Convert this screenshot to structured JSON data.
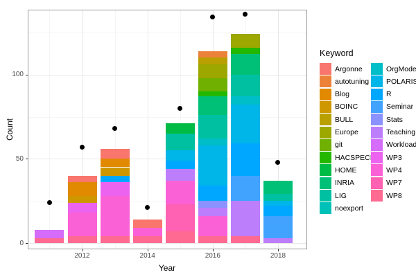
{
  "figure": {
    "y_axis": {
      "title": "Count",
      "ticks": [
        "0",
        "50",
        "100"
      ],
      "tick_values": [
        0,
        50,
        100
      ],
      "minor_values": [
        25,
        75,
        125
      ]
    },
    "x_axis": {
      "title": "Year",
      "ticks": [
        "2012",
        "2014",
        "2016",
        "2018"
      ],
      "tick_values": [
        2012,
        2014,
        2016,
        2018
      ],
      "minor_values": [
        2011,
        2013,
        2015,
        2017
      ]
    }
  },
  "legend": {
    "title": "Keyword",
    "columns": [
      [
        "Argonne",
        "autotuning",
        "Blog",
        "BOINC",
        "BULL",
        "Europe",
        "git",
        "HACSPECIS",
        "HOME",
        "INRIA",
        "LIG",
        "noexport"
      ],
      [
        "OrgMode",
        "POLARIS",
        "R",
        "Seminar",
        "Stats",
        "Teaching",
        "Workload",
        "WP3",
        "WP4",
        "WP7",
        "WP8"
      ]
    ]
  },
  "palette": {
    "Argonne": "#F8766D",
    "autotuning": "#EC8239",
    "Blog": "#E18A00",
    "BOINC": "#CE9700",
    "BULL": "#B9A000",
    "Europe": "#9CA700",
    "git": "#6FB000",
    "HACSPECIS": "#24B700",
    "HOME": "#00BB44",
    "INRIA": "#00C077",
    "LIG": "#00C0A2",
    "noexport": "#00C1B8",
    "OrgMode": "#00BEC8",
    "POLARIS": "#00B5E8",
    "R": "#00A7FF",
    "Seminar": "#42A3FF",
    "Stats": "#8B92FF",
    "Teaching": "#BD7EFC",
    "Workload": "#D56DFA",
    "WP3": "#EC63EF",
    "WP4": "#FB61D7",
    "WP7": "#FF62B2",
    "WP8": "#FF6A93"
  },
  "chart_data": {
    "type": "bar",
    "stacked": true,
    "title": "",
    "xlabel": "Year",
    "ylabel": "Count",
    "legend_title": "Keyword",
    "legend_position": "right",
    "xlim": [
      2010.5,
      2018.5
    ],
    "ylim": [
      0,
      138
    ],
    "grid": true,
    "stack_order": "bottom-to-top as listed; reverse of legend order",
    "bars": [
      {
        "year": 2011,
        "total": 8,
        "segments": [
          [
            "WP8",
            3
          ],
          [
            "Workload",
            5
          ]
        ]
      },
      {
        "year": 2012,
        "total": 40,
        "segments": [
          [
            "WP8",
            4
          ],
          [
            "WP4",
            14
          ],
          [
            "WP3",
            6
          ],
          [
            "BOINC",
            4
          ],
          [
            "Blog",
            8
          ],
          [
            "Argonne",
            4
          ]
        ]
      },
      {
        "year": 2013,
        "total": 56,
        "segments": [
          [
            "WP8",
            4
          ],
          [
            "WP4",
            24
          ],
          [
            "WP3",
            8
          ],
          [
            "R",
            4
          ],
          [
            "BOINC",
            5
          ],
          [
            "Blog",
            5
          ],
          [
            "Argonne",
            6
          ]
        ]
      },
      {
        "year": 2014,
        "total": 14,
        "segments": [
          [
            "WP8",
            4
          ],
          [
            "WP4",
            5
          ],
          [
            "Argonne",
            5
          ]
        ]
      },
      {
        "year": 2015,
        "total": 71,
        "segments": [
          [
            "WP8",
            7
          ],
          [
            "WP7",
            16
          ],
          [
            "WP4",
            14
          ],
          [
            "Teaching",
            7
          ],
          [
            "R",
            5
          ],
          [
            "POLARIS",
            6
          ],
          [
            "LIG",
            10
          ],
          [
            "HOME",
            6
          ]
        ]
      },
      {
        "year": 2016,
        "total": 114,
        "segments": [
          [
            "WP8",
            4
          ],
          [
            "WP4",
            12
          ],
          [
            "Teaching",
            5
          ],
          [
            "Stats",
            4
          ],
          [
            "R",
            9
          ],
          [
            "POLARIS",
            24
          ],
          [
            "OrgMode",
            4
          ],
          [
            "LIG",
            14
          ],
          [
            "INRIA",
            11
          ],
          [
            "HACSPECIS",
            3
          ],
          [
            "git",
            8
          ],
          [
            "Europe",
            8
          ],
          [
            "BULL",
            4
          ],
          [
            "autotuning",
            4
          ]
        ]
      },
      {
        "year": 2017,
        "total": 124,
        "segments": [
          [
            "WP8",
            4
          ],
          [
            "Teaching",
            21
          ],
          [
            "Seminar",
            15
          ],
          [
            "R",
            19
          ],
          [
            "POLARIS",
            23
          ],
          [
            "OrgMode",
            5
          ],
          [
            "LIG",
            13
          ],
          [
            "INRIA",
            12
          ],
          [
            "HACSPECIS",
            4
          ],
          [
            "Europe",
            8
          ]
        ]
      },
      {
        "year": 2018,
        "total": 37,
        "segments": [
          [
            "Teaching",
            3
          ],
          [
            "Seminar",
            13
          ],
          [
            "R",
            6
          ],
          [
            "POLARIS",
            3
          ],
          [
            "LIG",
            4
          ],
          [
            "INRIA",
            8
          ]
        ]
      }
    ],
    "points": [
      [
        2011,
        24
      ],
      [
        2012,
        57
      ],
      [
        2013,
        68
      ],
      [
        2014,
        21
      ],
      [
        2015,
        80
      ],
      [
        2016,
        134
      ],
      [
        2017,
        136
      ],
      [
        2018,
        48
      ]
    ]
  }
}
